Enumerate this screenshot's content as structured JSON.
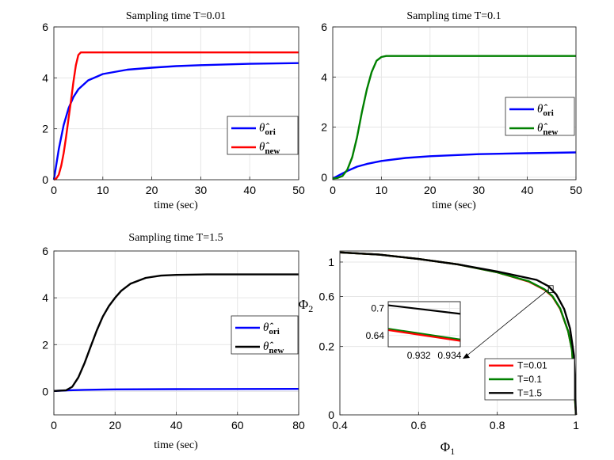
{
  "chart_data": [
    {
      "id": "p1",
      "type": "line",
      "title": "Sampling time T=0.01",
      "xlabel": "time (sec)",
      "ylabel": "",
      "xlim": [
        0,
        50
      ],
      "ylim": [
        0,
        6
      ],
      "xticks": [
        "0",
        "10",
        "20",
        "30",
        "40",
        "50"
      ],
      "yticks": [
        "0",
        "2",
        "4",
        "6"
      ],
      "grid": true,
      "legend_position": "right",
      "series": [
        {
          "name": "θ̂ ori",
          "sym": "θ̂",
          "sub": "ori",
          "color": "#0000ff",
          "x": [
            0,
            0.5,
            1,
            2,
            3,
            4,
            5,
            7,
            10,
            15,
            20,
            25,
            30,
            40,
            50
          ],
          "y": [
            0,
            0.6,
            1.2,
            2.15,
            2.8,
            3.25,
            3.55,
            3.9,
            4.15,
            4.32,
            4.4,
            4.46,
            4.5,
            4.55,
            4.58
          ]
        },
        {
          "name": "θ̂ new",
          "sym": "θ̂",
          "sub": "new",
          "color": "#ff0000",
          "x": [
            0,
            0.5,
            1,
            1.5,
            2,
            2.5,
            3,
            3.5,
            4,
            4.5,
            5,
            5.5,
            6,
            50
          ],
          "y": [
            0,
            0.05,
            0.2,
            0.55,
            1.05,
            1.7,
            2.4,
            3.1,
            3.85,
            4.5,
            4.9,
            5.0,
            5.0,
            5.0
          ]
        }
      ]
    },
    {
      "id": "p2",
      "type": "line",
      "title": "Sampling time T=0.1",
      "xlabel": "time (sec)",
      "ylabel": "",
      "xlim": [
        0,
        50
      ],
      "ylim": [
        -0.1,
        6
      ],
      "xticks": [
        "0",
        "10",
        "20",
        "30",
        "40",
        "50"
      ],
      "yticks": [
        "0",
        "2",
        "4",
        "6"
      ],
      "grid": true,
      "legend_position": "right",
      "series": [
        {
          "name": "θ̂ ori",
          "sym": "θ̂",
          "sub": "ori",
          "color": "#0000ff",
          "x": [
            0,
            1,
            2,
            3,
            5,
            7,
            10,
            15,
            20,
            30,
            40,
            50
          ],
          "y": [
            -0.05,
            0.05,
            0.15,
            0.25,
            0.42,
            0.53,
            0.65,
            0.77,
            0.84,
            0.92,
            0.96,
            0.99
          ]
        },
        {
          "name": "θ̂ new",
          "sym": "θ̂",
          "sub": "new",
          "color": "#008000",
          "x": [
            0,
            1,
            2,
            3,
            4,
            5,
            6,
            7,
            8,
            9,
            10,
            11,
            12,
            50
          ],
          "y": [
            -0.05,
            -0.03,
            0.05,
            0.3,
            0.8,
            1.6,
            2.6,
            3.5,
            4.2,
            4.65,
            4.8,
            4.84,
            4.84,
            4.84
          ]
        }
      ]
    },
    {
      "id": "p3",
      "type": "line",
      "title": "Sampling time T=1.5",
      "xlabel": "time (sec)",
      "ylabel": "",
      "xlim": [
        0,
        80
      ],
      "ylim": [
        -1,
        6
      ],
      "xticks": [
        "0",
        "20",
        "40",
        "60",
        "80"
      ],
      "yticks": [
        "0",
        "2",
        "4",
        "6"
      ],
      "grid": true,
      "legend_position": "right",
      "series": [
        {
          "name": "θ̂ ori",
          "sym": "θ̂",
          "sub": "ori",
          "color": "#0000ff",
          "x": [
            0,
            5,
            10,
            20,
            40,
            80
          ],
          "y": [
            0.02,
            0.05,
            0.07,
            0.09,
            0.1,
            0.11
          ]
        },
        {
          "name": "θ̂ new",
          "sym": "θ̂",
          "sub": "new",
          "color": "#000000",
          "x": [
            0,
            4,
            6,
            8,
            10,
            12,
            14,
            16,
            18,
            20,
            22,
            25,
            30,
            35,
            40,
            50,
            80
          ],
          "y": [
            0.02,
            0.05,
            0.2,
            0.6,
            1.2,
            1.9,
            2.6,
            3.2,
            3.65,
            4.0,
            4.3,
            4.6,
            4.85,
            4.95,
            4.98,
            5.0,
            5.0
          ]
        }
      ]
    },
    {
      "id": "p4",
      "type": "line",
      "title": "",
      "xlabel": "Φ",
      "xlabel_sub": "1",
      "ylabel": "Φ",
      "ylabel_sub": "2",
      "xlim": [
        0.4,
        1
      ],
      "ylim": [
        0,
        1.15
      ],
      "xticks": [
        "0.4",
        "0.6",
        "0.8",
        "1"
      ],
      "yticks": [
        "0",
        "0.2",
        "0.6",
        "1"
      ],
      "yscale": "sqrt",
      "grid": true,
      "legend_position": "bottom-right",
      "series": [
        {
          "name": "T=0.01",
          "color": "#ff0000",
          "x": [
            0.4,
            0.5,
            0.6,
            0.7,
            0.8,
            0.88,
            0.92,
            0.94,
            0.96,
            0.98,
            0.99,
            1.0
          ],
          "y": [
            1.13,
            1.1,
            1.04,
            0.97,
            0.87,
            0.76,
            0.67,
            0.6,
            0.48,
            0.3,
            0.18,
            0.0
          ]
        },
        {
          "name": "T=0.1",
          "color": "#008000",
          "x": [
            0.4,
            0.5,
            0.6,
            0.7,
            0.8,
            0.88,
            0.92,
            0.94,
            0.96,
            0.98,
            0.99,
            1.0
          ],
          "y": [
            1.13,
            1.1,
            1.04,
            0.97,
            0.87,
            0.765,
            0.675,
            0.605,
            0.485,
            0.3,
            0.18,
            0.0
          ]
        },
        {
          "name": "T=1.5",
          "color": "#000000",
          "x": [
            0.4,
            0.5,
            0.6,
            0.7,
            0.8,
            0.9,
            0.93,
            0.95,
            0.97,
            0.985,
            0.995,
            1.0
          ],
          "y": [
            1.13,
            1.1,
            1.04,
            0.97,
            0.88,
            0.78,
            0.71,
            0.62,
            0.48,
            0.32,
            0.15,
            0.0
          ]
        }
      ],
      "inset": {
        "xlim": [
          0.93,
          0.9347
        ],
        "ylim": [
          0.615,
          0.715
        ],
        "xticks": [
          "0.932",
          "0.934"
        ],
        "yticks": [
          "0.64",
          "0.7"
        ],
        "series": [
          {
            "name": "T=1.5",
            "color": "#000000",
            "x": [
              0.93,
              0.9347
            ],
            "y": [
              0.707,
              0.688
            ]
          },
          {
            "name": "T=0.1",
            "color": "#008000",
            "x": [
              0.93,
              0.9347
            ],
            "y": [
              0.655,
              0.631
            ]
          },
          {
            "name": "T=0.01",
            "color": "#ff0000",
            "x": [
              0.93,
              0.9347
            ],
            "y": [
              0.652,
              0.628
            ]
          }
        ]
      }
    }
  ]
}
